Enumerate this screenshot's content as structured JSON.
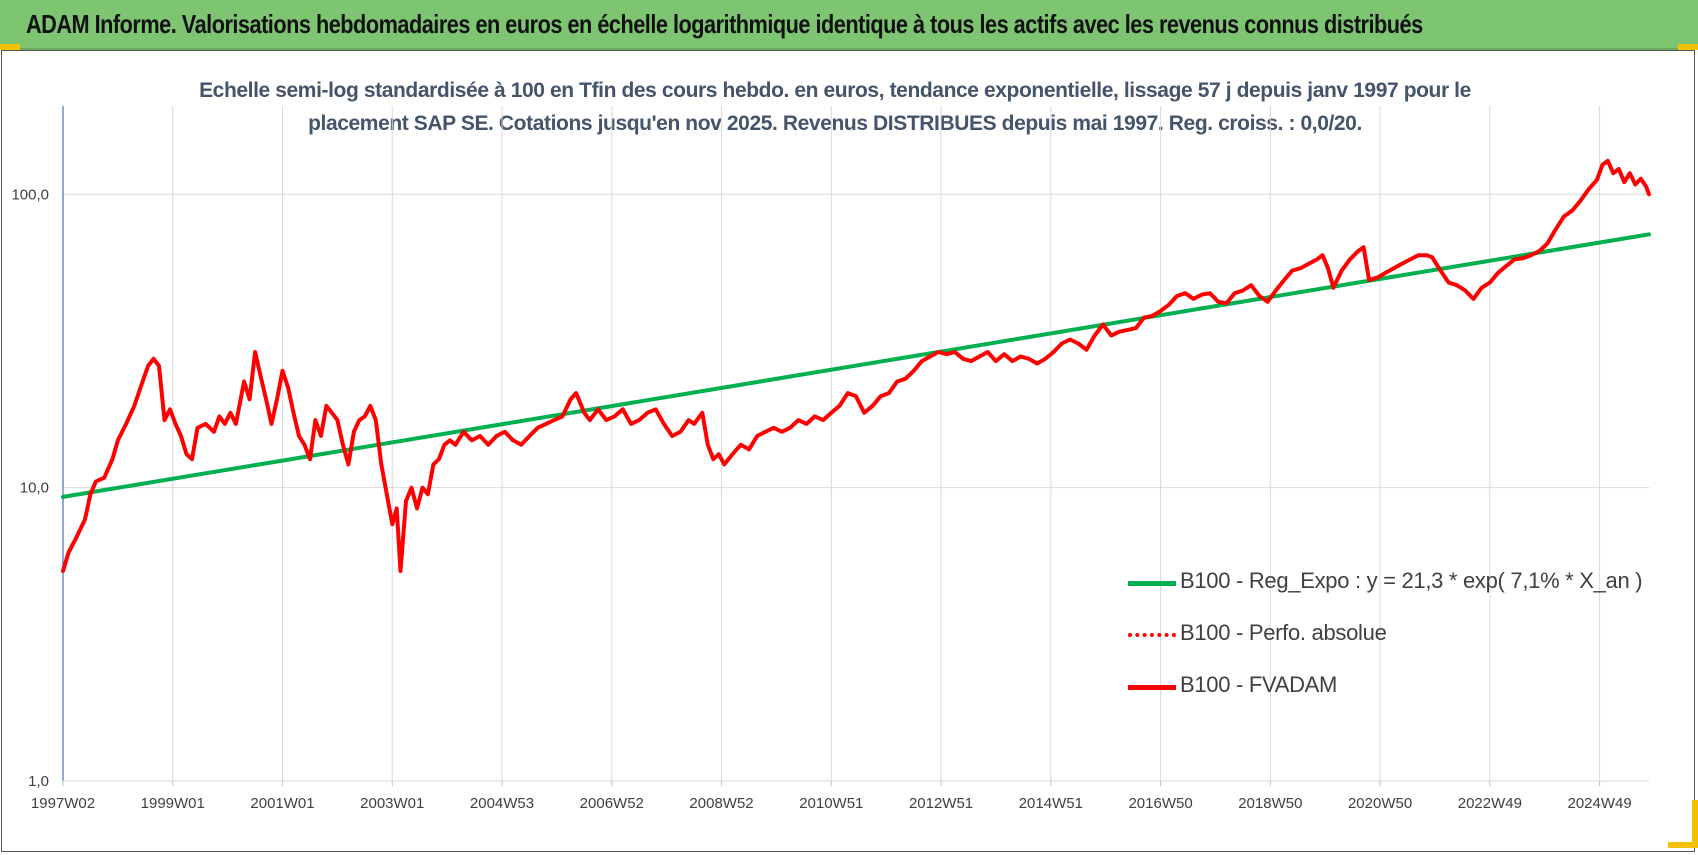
{
  "banner": {
    "title": "ADAM Informe. Valorisations hebdomadaires en euros en échelle logarithmique identique à tous les actifs avec les revenus connus distribués"
  },
  "colors": {
    "banner": "#7dc571",
    "regression": "#00b050",
    "fvadam": "#ff0000",
    "perfo": "#ff0000",
    "grid": "#d9d9d9",
    "title_text": "#44546a",
    "corner": "#f2c200"
  },
  "chart_data": {
    "type": "line",
    "title_line1": "Echelle semi-log standardisée à 100 en Tfin des cours hebdo. en euros, tendance exponentielle, lissage 57 j depuis janv 1997 pour le",
    "title_line2": "placement SAP SE. Cotations jusqu'en nov 2025. Revenus DISTRIBUES depuis mai 1997. Reg. croiss. : 0,0/20.",
    "y_scale": "log",
    "ylim": [
      1,
      200
    ],
    "y_ticks": [
      {
        "value": 1,
        "label": "1,0"
      },
      {
        "value": 10,
        "label": "10,0"
      },
      {
        "value": 100,
        "label": "100,0"
      }
    ],
    "x_range": [
      1997.0,
      2025.9
    ],
    "x_ticks": [
      {
        "x": 1997.0,
        "label": "1997W02"
      },
      {
        "x": 1999.0,
        "label": "1999W01"
      },
      {
        "x": 2001.0,
        "label": "2001W01"
      },
      {
        "x": 2003.0,
        "label": "2003W01"
      },
      {
        "x": 2005.0,
        "label": "2004W53"
      },
      {
        "x": 2007.0,
        "label": "2006W52"
      },
      {
        "x": 2009.0,
        "label": "2008W52"
      },
      {
        "x": 2011.0,
        "label": "2010W51"
      },
      {
        "x": 2013.0,
        "label": "2012W51"
      },
      {
        "x": 2015.0,
        "label": "2014W51"
      },
      {
        "x": 2017.0,
        "label": "2016W50"
      },
      {
        "x": 2019.0,
        "label": "2018W50"
      },
      {
        "x": 2021.0,
        "label": "2020W50"
      },
      {
        "x": 2023.0,
        "label": "2022W49"
      },
      {
        "x": 2025.0,
        "label": "2024W49"
      }
    ],
    "grid": true,
    "legend_position": "right",
    "series": [
      {
        "name": "B100 - Reg_Expo : y = 21,3 * exp( 7,1% *  X_an )",
        "style": "solid-thick",
        "color": "#00b050",
        "points": [
          [
            1997.0,
            9.3
          ],
          [
            2025.9,
            73
          ]
        ]
      },
      {
        "name": "B100 - Perfo. absolue",
        "style": "dotted",
        "color": "#ff0000",
        "points": []
      },
      {
        "name": "B100 - FVADAM",
        "style": "solid-thick",
        "color": "#ff0000",
        "points": [
          [
            1997.0,
            5.2
          ],
          [
            1997.1,
            6.0
          ],
          [
            1997.25,
            6.8
          ],
          [
            1997.4,
            7.8
          ],
          [
            1997.5,
            9.5
          ],
          [
            1997.6,
            10.5
          ],
          [
            1997.75,
            10.8
          ],
          [
            1997.9,
            12.5
          ],
          [
            1998.0,
            14.5
          ],
          [
            1998.15,
            16.5
          ],
          [
            1998.3,
            19.0
          ],
          [
            1998.45,
            23.0
          ],
          [
            1998.55,
            26.0
          ],
          [
            1998.65,
            27.5
          ],
          [
            1998.75,
            26.0
          ],
          [
            1998.85,
            17.0
          ],
          [
            1998.95,
            18.5
          ],
          [
            1999.05,
            16.5
          ],
          [
            1999.15,
            15.0
          ],
          [
            1999.25,
            13.0
          ],
          [
            1999.35,
            12.5
          ],
          [
            1999.45,
            16.0
          ],
          [
            1999.6,
            16.5
          ],
          [
            1999.75,
            15.5
          ],
          [
            1999.85,
            17.5
          ],
          [
            1999.95,
            16.5
          ],
          [
            2000.05,
            18.0
          ],
          [
            2000.15,
            16.5
          ],
          [
            2000.3,
            23.0
          ],
          [
            2000.4,
            20.0
          ],
          [
            2000.5,
            29.0
          ],
          [
            2000.6,
            24.0
          ],
          [
            2000.7,
            20.0
          ],
          [
            2000.8,
            16.5
          ],
          [
            2000.9,
            20.0
          ],
          [
            2001.0,
            25.0
          ],
          [
            2001.1,
            22.0
          ],
          [
            2001.2,
            18.0
          ],
          [
            2001.3,
            15.0
          ],
          [
            2001.4,
            14.0
          ],
          [
            2001.5,
            12.5
          ],
          [
            2001.6,
            17.0
          ],
          [
            2001.7,
            15.0
          ],
          [
            2001.8,
            19.0
          ],
          [
            2001.9,
            18.0
          ],
          [
            2002.0,
            17.0
          ],
          [
            2002.1,
            14.0
          ],
          [
            2002.2,
            12.0
          ],
          [
            2002.3,
            15.5
          ],
          [
            2002.4,
            17.0
          ],
          [
            2002.5,
            17.5
          ],
          [
            2002.6,
            19.0
          ],
          [
            2002.7,
            17.0
          ],
          [
            2002.8,
            12.0
          ],
          [
            2002.9,
            9.5
          ],
          [
            2003.0,
            7.5
          ],
          [
            2003.08,
            8.5
          ],
          [
            2003.15,
            5.2
          ],
          [
            2003.25,
            9.0
          ],
          [
            2003.35,
            10.0
          ],
          [
            2003.45,
            8.5
          ],
          [
            2003.55,
            10.0
          ],
          [
            2003.65,
            9.5
          ],
          [
            2003.75,
            12.0
          ],
          [
            2003.85,
            12.5
          ],
          [
            2003.95,
            14.0
          ],
          [
            2004.05,
            14.5
          ],
          [
            2004.15,
            14.0
          ],
          [
            2004.3,
            15.5
          ],
          [
            2004.45,
            14.5
          ],
          [
            2004.6,
            15.0
          ],
          [
            2004.75,
            14.0
          ],
          [
            2004.9,
            15.0
          ],
          [
            2005.05,
            15.5
          ],
          [
            2005.2,
            14.5
          ],
          [
            2005.35,
            14.0
          ],
          [
            2005.5,
            15.0
          ],
          [
            2005.65,
            16.0
          ],
          [
            2005.8,
            16.5
          ],
          [
            2005.95,
            17.0
          ],
          [
            2006.1,
            17.5
          ],
          [
            2006.25,
            20.0
          ],
          [
            2006.35,
            21.0
          ],
          [
            2006.5,
            18.0
          ],
          [
            2006.6,
            17.0
          ],
          [
            2006.75,
            18.5
          ],
          [
            2006.9,
            17.0
          ],
          [
            2007.05,
            17.5
          ],
          [
            2007.2,
            18.5
          ],
          [
            2007.35,
            16.5
          ],
          [
            2007.5,
            17.0
          ],
          [
            2007.65,
            18.0
          ],
          [
            2007.8,
            18.5
          ],
          [
            2007.95,
            16.5
          ],
          [
            2008.1,
            15.0
          ],
          [
            2008.25,
            15.5
          ],
          [
            2008.4,
            17.0
          ],
          [
            2008.5,
            16.5
          ],
          [
            2008.65,
            18.0
          ],
          [
            2008.75,
            14.0
          ],
          [
            2008.85,
            12.5
          ],
          [
            2008.95,
            13.0
          ],
          [
            2009.05,
            12.0
          ],
          [
            2009.2,
            13.0
          ],
          [
            2009.35,
            14.0
          ],
          [
            2009.5,
            13.5
          ],
          [
            2009.65,
            15.0
          ],
          [
            2009.8,
            15.5
          ],
          [
            2009.95,
            16.0
          ],
          [
            2010.1,
            15.5
          ],
          [
            2010.25,
            16.0
          ],
          [
            2010.4,
            17.0
          ],
          [
            2010.55,
            16.5
          ],
          [
            2010.7,
            17.5
          ],
          [
            2010.85,
            17.0
          ],
          [
            2011.0,
            18.0
          ],
          [
            2011.15,
            19.0
          ],
          [
            2011.3,
            21.0
          ],
          [
            2011.45,
            20.5
          ],
          [
            2011.6,
            18.0
          ],
          [
            2011.75,
            19.0
          ],
          [
            2011.9,
            20.5
          ],
          [
            2012.05,
            21.0
          ],
          [
            2012.2,
            23.0
          ],
          [
            2012.35,
            23.5
          ],
          [
            2012.5,
            25.0
          ],
          [
            2012.65,
            27.0
          ],
          [
            2012.8,
            28.0
          ],
          [
            2012.95,
            29.0
          ],
          [
            2013.1,
            28.5
          ],
          [
            2013.25,
            29.0
          ],
          [
            2013.4,
            27.5
          ],
          [
            2013.55,
            27.0
          ],
          [
            2013.7,
            28.0
          ],
          [
            2013.85,
            29.0
          ],
          [
            2014.0,
            27.0
          ],
          [
            2014.15,
            28.5
          ],
          [
            2014.3,
            27.0
          ],
          [
            2014.45,
            28.0
          ],
          [
            2014.6,
            27.5
          ],
          [
            2014.75,
            26.5
          ],
          [
            2014.9,
            27.5
          ],
          [
            2015.05,
            29.0
          ],
          [
            2015.2,
            31.0
          ],
          [
            2015.35,
            32.0
          ],
          [
            2015.5,
            31.0
          ],
          [
            2015.65,
            29.5
          ],
          [
            2015.8,
            33.0
          ],
          [
            2015.95,
            36.0
          ],
          [
            2016.1,
            33.0
          ],
          [
            2016.25,
            34.0
          ],
          [
            2016.4,
            34.5
          ],
          [
            2016.55,
            35.0
          ],
          [
            2016.7,
            38.0
          ],
          [
            2016.85,
            38.5
          ],
          [
            2017.0,
            40.0
          ],
          [
            2017.15,
            42.0
          ],
          [
            2017.3,
            45.0
          ],
          [
            2017.45,
            46.0
          ],
          [
            2017.6,
            44.0
          ],
          [
            2017.75,
            45.5
          ],
          [
            2017.9,
            46.0
          ],
          [
            2018.05,
            43.0
          ],
          [
            2018.2,
            42.5
          ],
          [
            2018.35,
            46.0
          ],
          [
            2018.5,
            47.0
          ],
          [
            2018.65,
            49.0
          ],
          [
            2018.8,
            45.0
          ],
          [
            2018.95,
            43.0
          ],
          [
            2019.1,
            47.0
          ],
          [
            2019.25,
            51.0
          ],
          [
            2019.4,
            55.0
          ],
          [
            2019.55,
            56.0
          ],
          [
            2019.7,
            58.0
          ],
          [
            2019.85,
            60.0
          ],
          [
            2019.95,
            62.0
          ],
          [
            2020.05,
            56.0
          ],
          [
            2020.15,
            48.0
          ],
          [
            2020.3,
            55.0
          ],
          [
            2020.45,
            60.0
          ],
          [
            2020.6,
            64.0
          ],
          [
            2020.7,
            66.0
          ],
          [
            2020.8,
            51.0
          ],
          [
            2020.95,
            52.0
          ],
          [
            2021.1,
            54.0
          ],
          [
            2021.25,
            56.0
          ],
          [
            2021.4,
            58.0
          ],
          [
            2021.55,
            60.0
          ],
          [
            2021.7,
            62.0
          ],
          [
            2021.85,
            62.0
          ],
          [
            2021.95,
            61.0
          ],
          [
            2022.1,
            55.0
          ],
          [
            2022.25,
            50.0
          ],
          [
            2022.4,
            49.0
          ],
          [
            2022.55,
            47.0
          ],
          [
            2022.7,
            44.0
          ],
          [
            2022.85,
            48.0
          ],
          [
            2023.0,
            50.0
          ],
          [
            2023.15,
            54.0
          ],
          [
            2023.3,
            57.0
          ],
          [
            2023.45,
            60.0
          ],
          [
            2023.6,
            60.5
          ],
          [
            2023.75,
            62.0
          ],
          [
            2023.9,
            64.0
          ],
          [
            2024.05,
            68.0
          ],
          [
            2024.2,
            76.0
          ],
          [
            2024.35,
            84.0
          ],
          [
            2024.5,
            88.0
          ],
          [
            2024.65,
            95.0
          ],
          [
            2024.8,
            104.0
          ],
          [
            2024.95,
            112.0
          ],
          [
            2025.05,
            126.0
          ],
          [
            2025.15,
            130.0
          ],
          [
            2025.25,
            118.0
          ],
          [
            2025.35,
            122.0
          ],
          [
            2025.45,
            110.0
          ],
          [
            2025.55,
            118.0
          ],
          [
            2025.65,
            108.0
          ],
          [
            2025.75,
            113.0
          ],
          [
            2025.85,
            106.0
          ],
          [
            2025.9,
            100.0
          ]
        ]
      }
    ]
  }
}
